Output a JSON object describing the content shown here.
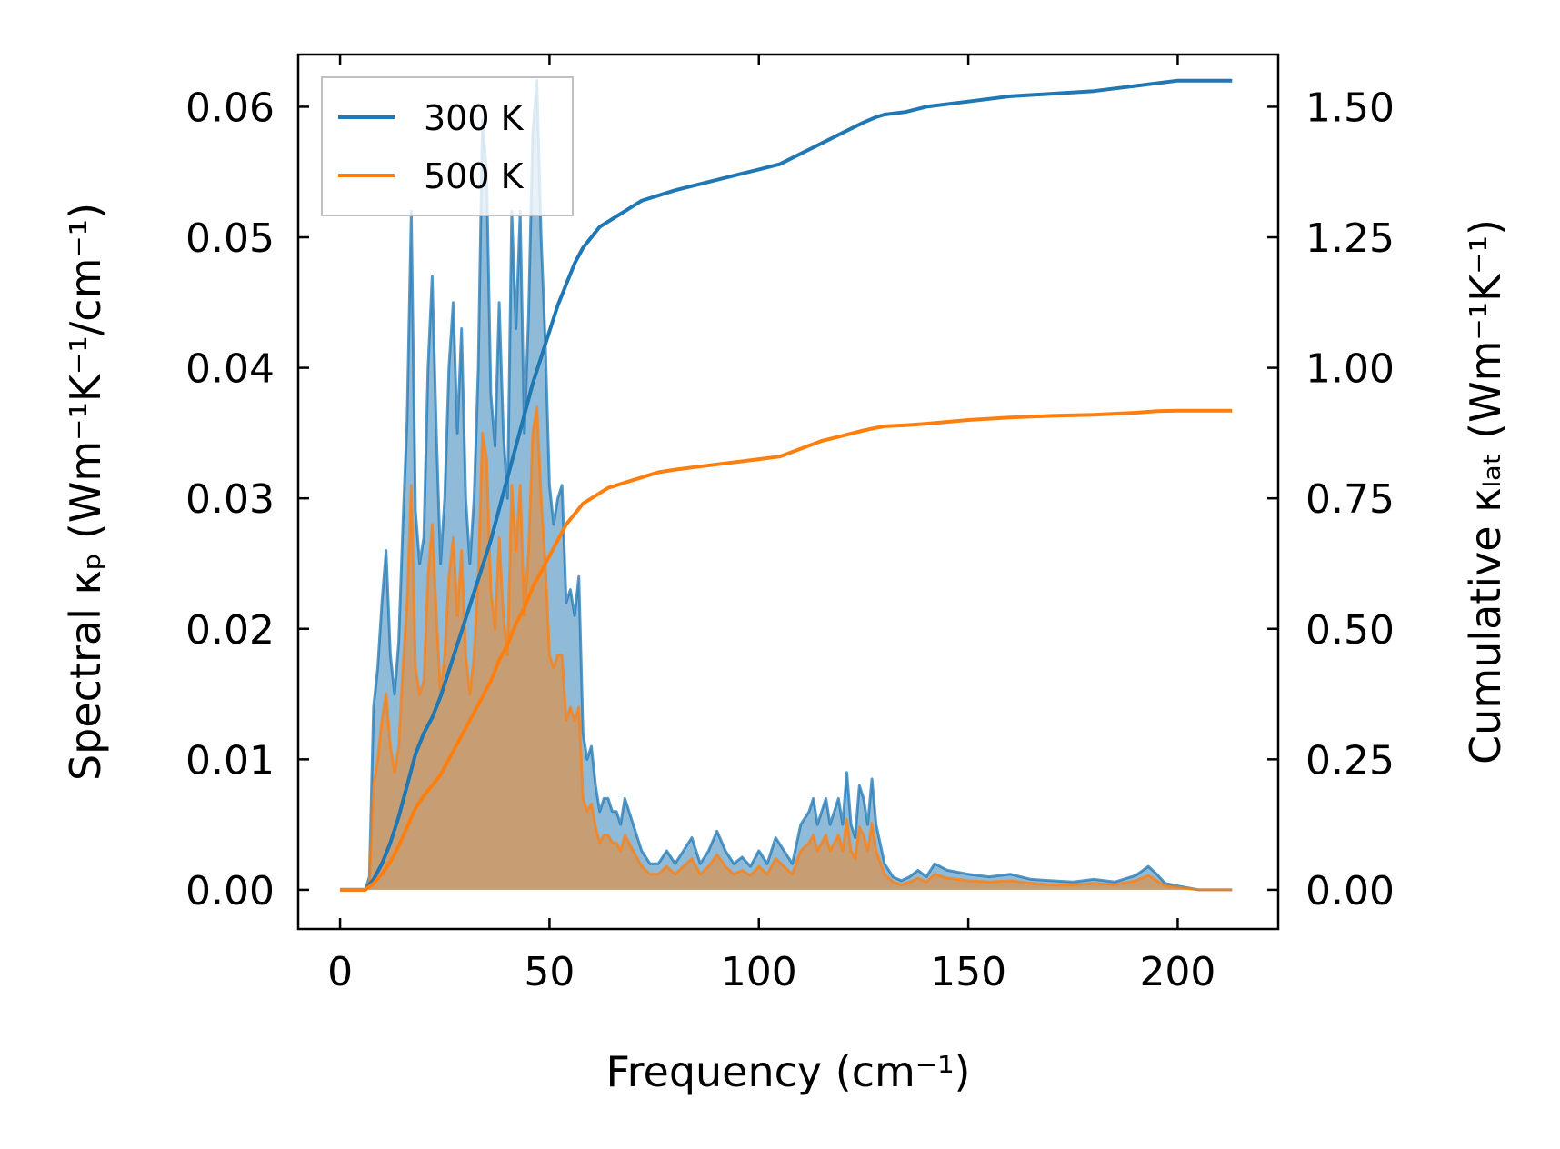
{
  "chart_data": {
    "type": "line",
    "title": "",
    "xlabel": "Frequency (cm⁻¹)",
    "ylabel_left": "Spectral κₚ (Wm⁻¹K⁻¹/cm⁻¹)",
    "ylabel_right": "Cumulative κₗₐₜ (Wm⁻¹K⁻¹)",
    "xlim": [
      -10,
      224
    ],
    "ylim_left": [
      -0.003,
      0.064
    ],
    "ylim_right": [
      -0.075,
      1.6
    ],
    "xticks": [
      "0",
      "50",
      "100",
      "150",
      "200"
    ],
    "yticks_left": [
      "0.00",
      "0.01",
      "0.02",
      "0.03",
      "0.04",
      "0.05",
      "0.06"
    ],
    "yticks_right": [
      "0.00",
      "0.25",
      "0.50",
      "0.75",
      "1.00",
      "1.25",
      "1.50"
    ],
    "legend": {
      "position": "top-left",
      "entries": [
        "300 K",
        "500 K"
      ]
    },
    "colors": {
      "300 K": "#1f77b4",
      "500 K": "#ff7f0e"
    },
    "series": [
      {
        "name": "300 K",
        "role": "spectral",
        "axis": "left",
        "x": [
          0,
          6,
          7,
          8,
          9,
          10,
          11,
          12,
          13,
          14,
          15,
          16,
          17,
          18,
          19,
          20,
          21,
          22,
          23,
          24,
          25,
          26,
          27,
          28,
          29,
          30,
          31,
          32,
          33,
          34,
          35,
          36,
          37,
          38,
          39,
          40,
          41,
          42,
          43,
          44,
          45,
          46,
          47,
          48,
          49,
          50,
          51,
          52,
          53,
          54,
          55,
          56,
          57,
          58,
          59,
          60,
          61,
          62,
          63,
          64,
          65,
          66,
          67,
          68,
          70,
          72,
          74,
          76,
          78,
          80,
          82,
          84,
          86,
          88,
          90,
          92,
          94,
          96,
          98,
          100,
          102,
          104,
          106,
          108,
          110,
          112,
          113,
          114,
          115,
          116,
          117,
          118,
          119,
          120,
          121,
          122,
          123,
          124,
          125,
          126,
          127,
          128,
          130,
          132,
          134,
          136,
          138,
          140,
          142,
          145,
          150,
          155,
          160,
          165,
          170,
          175,
          180,
          185,
          190,
          193,
          195,
          197,
          200,
          205,
          210,
          213
        ],
        "y": [
          0,
          0,
          0.001,
          0.014,
          0.017,
          0.022,
          0.026,
          0.018,
          0.015,
          0.019,
          0.028,
          0.036,
          0.052,
          0.029,
          0.025,
          0.027,
          0.04,
          0.047,
          0.035,
          0.025,
          0.03,
          0.04,
          0.045,
          0.035,
          0.043,
          0.03,
          0.025,
          0.03,
          0.04,
          0.059,
          0.055,
          0.038,
          0.034,
          0.045,
          0.035,
          0.03,
          0.052,
          0.043,
          0.052,
          0.035,
          0.044,
          0.058,
          0.062,
          0.05,
          0.042,
          0.031,
          0.028,
          0.03,
          0.031,
          0.022,
          0.023,
          0.021,
          0.024,
          0.012,
          0.01,
          0.011,
          0.008,
          0.006,
          0.007,
          0.007,
          0.006,
          0.006,
          0.005,
          0.007,
          0.005,
          0.003,
          0.002,
          0.002,
          0.003,
          0.002,
          0.003,
          0.004,
          0.002,
          0.003,
          0.0045,
          0.003,
          0.002,
          0.0025,
          0.0018,
          0.003,
          0.002,
          0.004,
          0.003,
          0.002,
          0.005,
          0.006,
          0.007,
          0.005,
          0.006,
          0.007,
          0.005,
          0.006,
          0.007,
          0.005,
          0.009,
          0.005,
          0.004,
          0.008,
          0.007,
          0.005,
          0.0085,
          0.005,
          0.002,
          0.001,
          0.0007,
          0.001,
          0.0015,
          0.001,
          0.002,
          0.0015,
          0.0012,
          0.001,
          0.0012,
          0.0008,
          0.0007,
          0.0006,
          0.0008,
          0.0006,
          0.0011,
          0.0018,
          0.0012,
          0.0005,
          0.0003,
          0,
          0,
          0
        ]
      },
      {
        "name": "500 K",
        "role": "spectral",
        "axis": "left",
        "x": [
          0,
          6,
          7,
          8,
          9,
          10,
          11,
          12,
          13,
          14,
          15,
          16,
          17,
          18,
          19,
          20,
          21,
          22,
          23,
          24,
          25,
          26,
          27,
          28,
          29,
          30,
          31,
          32,
          33,
          34,
          35,
          36,
          37,
          38,
          39,
          40,
          41,
          42,
          43,
          44,
          45,
          46,
          47,
          48,
          49,
          50,
          51,
          52,
          53,
          54,
          55,
          56,
          57,
          58,
          59,
          60,
          61,
          62,
          63,
          64,
          65,
          66,
          67,
          68,
          70,
          72,
          74,
          76,
          78,
          80,
          82,
          84,
          86,
          88,
          90,
          92,
          94,
          96,
          98,
          100,
          102,
          104,
          106,
          108,
          110,
          112,
          113,
          114,
          115,
          116,
          117,
          118,
          119,
          120,
          121,
          122,
          123,
          124,
          125,
          126,
          127,
          128,
          130,
          132,
          134,
          136,
          138,
          140,
          142,
          145,
          150,
          155,
          160,
          165,
          170,
          175,
          180,
          185,
          190,
          193,
          195,
          197,
          200,
          205,
          210,
          213
        ],
        "y": [
          0,
          0,
          0.0006,
          0.008,
          0.01,
          0.013,
          0.015,
          0.011,
          0.009,
          0.011,
          0.017,
          0.022,
          0.031,
          0.017,
          0.015,
          0.016,
          0.024,
          0.028,
          0.021,
          0.015,
          0.018,
          0.024,
          0.027,
          0.021,
          0.026,
          0.018,
          0.015,
          0.018,
          0.024,
          0.035,
          0.033,
          0.023,
          0.02,
          0.027,
          0.021,
          0.018,
          0.031,
          0.026,
          0.031,
          0.021,
          0.026,
          0.035,
          0.037,
          0.03,
          0.025,
          0.018,
          0.017,
          0.018,
          0.018,
          0.013,
          0.014,
          0.013,
          0.014,
          0.007,
          0.006,
          0.0066,
          0.0048,
          0.0036,
          0.0042,
          0.0042,
          0.0036,
          0.0036,
          0.003,
          0.0042,
          0.003,
          0.0018,
          0.0012,
          0.0012,
          0.0018,
          0.0012,
          0.0018,
          0.0024,
          0.0012,
          0.0018,
          0.0027,
          0.0018,
          0.0012,
          0.0015,
          0.0011,
          0.0018,
          0.0012,
          0.0024,
          0.0018,
          0.0012,
          0.003,
          0.0036,
          0.0042,
          0.003,
          0.0036,
          0.0042,
          0.003,
          0.0036,
          0.0042,
          0.003,
          0.0054,
          0.003,
          0.0024,
          0.0048,
          0.0042,
          0.003,
          0.0051,
          0.003,
          0.0012,
          0.0006,
          0.0004,
          0.0006,
          0.0009,
          0.0006,
          0.0012,
          0.0009,
          0.0007,
          0.0006,
          0.0007,
          0.0005,
          0.0004,
          0.0004,
          0.0005,
          0.0004,
          0.0007,
          0.0011,
          0.0007,
          0.0003,
          0.0002,
          0,
          0,
          0
        ]
      },
      {
        "name": "300 K",
        "role": "cumulative",
        "axis": "right",
        "x": [
          0,
          6,
          8,
          10,
          12,
          14,
          16,
          18,
          20,
          22,
          24,
          26,
          28,
          30,
          32,
          34,
          36,
          38,
          40,
          42,
          44,
          46,
          48,
          50,
          52,
          54,
          56,
          58,
          60,
          62,
          64,
          66,
          68,
          70,
          72,
          74,
          76,
          80,
          85,
          90,
          95,
          100,
          105,
          110,
          115,
          120,
          125,
          128,
          130,
          135,
          140,
          150,
          160,
          170,
          180,
          185,
          190,
          195,
          200,
          205,
          210,
          213
        ],
        "y": [
          0,
          0,
          0.02,
          0.05,
          0.09,
          0.14,
          0.2,
          0.26,
          0.3,
          0.33,
          0.37,
          0.42,
          0.47,
          0.52,
          0.57,
          0.62,
          0.67,
          0.73,
          0.79,
          0.85,
          0.91,
          0.97,
          1.02,
          1.07,
          1.12,
          1.16,
          1.2,
          1.23,
          1.25,
          1.27,
          1.28,
          1.29,
          1.3,
          1.31,
          1.32,
          1.325,
          1.33,
          1.34,
          1.35,
          1.36,
          1.37,
          1.38,
          1.39,
          1.41,
          1.43,
          1.45,
          1.47,
          1.48,
          1.485,
          1.49,
          1.5,
          1.51,
          1.52,
          1.525,
          1.53,
          1.535,
          1.54,
          1.545,
          1.55,
          1.55,
          1.55,
          1.55
        ]
      },
      {
        "name": "500 K",
        "role": "cumulative",
        "axis": "right",
        "x": [
          0,
          6,
          8,
          10,
          12,
          14,
          16,
          18,
          20,
          22,
          24,
          26,
          28,
          30,
          32,
          34,
          36,
          38,
          40,
          42,
          44,
          46,
          48,
          50,
          52,
          54,
          56,
          58,
          60,
          62,
          64,
          66,
          68,
          70,
          72,
          74,
          76,
          80,
          85,
          90,
          95,
          100,
          105,
          110,
          115,
          120,
          125,
          128,
          130,
          135,
          140,
          150,
          160,
          170,
          180,
          185,
          190,
          195,
          200,
          205,
          210,
          213
        ],
        "y": [
          0,
          0,
          0.012,
          0.03,
          0.054,
          0.084,
          0.12,
          0.156,
          0.18,
          0.2,
          0.22,
          0.25,
          0.28,
          0.31,
          0.34,
          0.37,
          0.4,
          0.44,
          0.47,
          0.51,
          0.54,
          0.58,
          0.61,
          0.64,
          0.67,
          0.7,
          0.72,
          0.74,
          0.75,
          0.76,
          0.77,
          0.775,
          0.78,
          0.785,
          0.79,
          0.795,
          0.8,
          0.805,
          0.81,
          0.815,
          0.82,
          0.825,
          0.83,
          0.845,
          0.86,
          0.87,
          0.88,
          0.885,
          0.888,
          0.89,
          0.893,
          0.9,
          0.905,
          0.908,
          0.91,
          0.912,
          0.914,
          0.917,
          0.918,
          0.918,
          0.918,
          0.918
        ]
      }
    ]
  }
}
